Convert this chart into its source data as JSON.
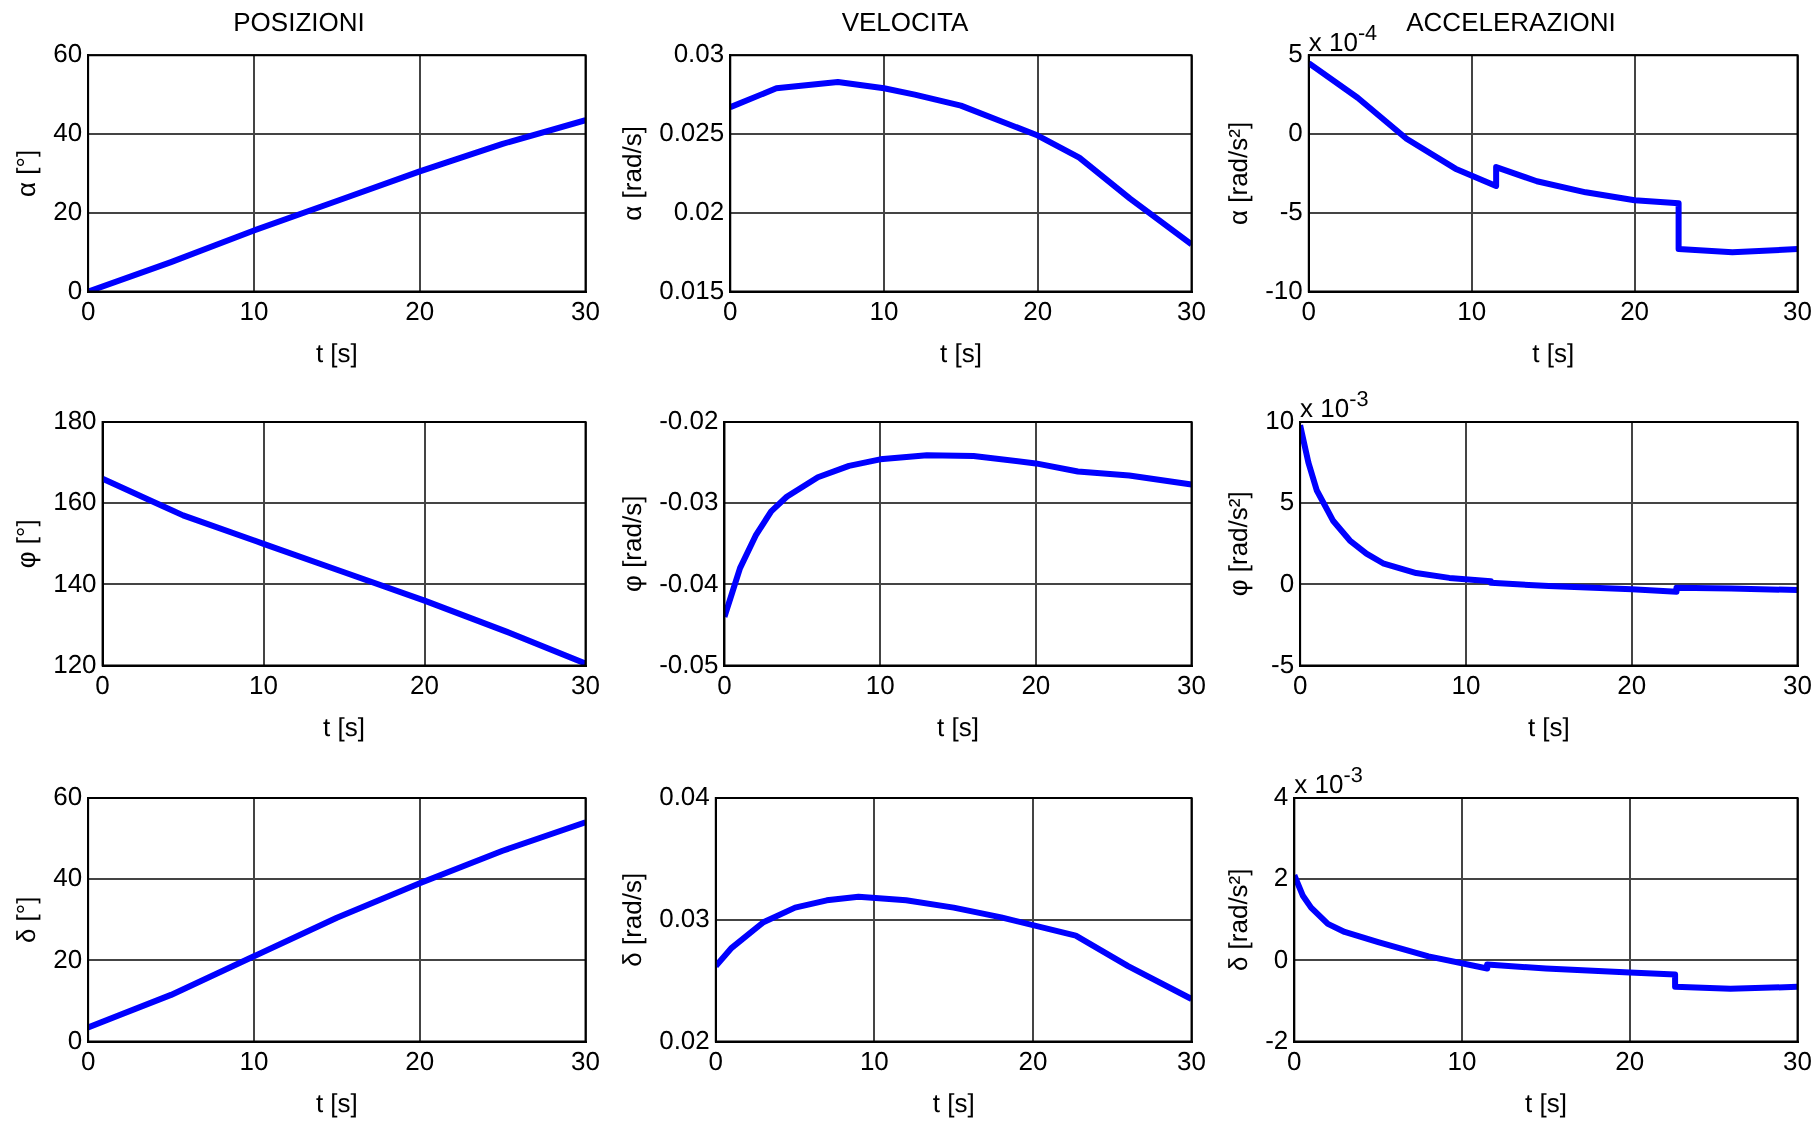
{
  "chart_data": [
    {
      "type": "line",
      "title": "POSIZIONI",
      "xlabel": "t [s]",
      "ylabel": "α [°]",
      "x": [
        0,
        5,
        10,
        15,
        20,
        25,
        30
      ],
      "series": [
        {
          "color": "#0000ff",
          "values": [
            0,
            7.5,
            15.5,
            23,
            30.5,
            37.5,
            43.5
          ]
        }
      ],
      "xlim": [
        0,
        30
      ],
      "xticks": [
        0,
        10,
        20,
        30
      ],
      "ylim": [
        0,
        60
      ],
      "yticks": [
        0,
        20,
        40,
        60
      ],
      "grid": true
    },
    {
      "type": "line",
      "title": "VELOCITA",
      "xlabel": "t [s]",
      "ylabel": "α [rad/s]",
      "x": [
        0,
        3,
        7,
        10,
        12,
        15,
        20,
        22.7,
        26,
        30
      ],
      "series": [
        {
          "color": "#0000ff",
          "values": [
            0.0267,
            0.0279,
            0.0283,
            0.0279,
            0.0275,
            0.0268,
            0.0249,
            0.0235,
            0.0209,
            0.018
          ]
        }
      ],
      "xlim": [
        0,
        30
      ],
      "xticks": [
        0,
        10,
        20,
        30
      ],
      "ylim": [
        0.015,
        0.03
      ],
      "yticks": [
        0.015,
        0.02,
        0.025,
        0.03
      ],
      "grid": true
    },
    {
      "type": "line",
      "title": "ACCELERAZIONI",
      "xlabel": "t [s]",
      "ylabel": "α [rad/s²]",
      "annotations": [
        "x 10$^{-4}$"
      ],
      "x": [
        0,
        3,
        6,
        9,
        11.5,
        11.5,
        14,
        17,
        20,
        22.7,
        22.7,
        26,
        30
      ],
      "series": [
        {
          "color": "#0000ff",
          "values": [
            4.5,
            2.3,
            -0.3,
            -2.2,
            -3.3,
            -2.1,
            -3,
            -3.7,
            -4.2,
            -4.4,
            -7.3,
            -7.5,
            -7.3
          ]
        }
      ],
      "xlim": [
        0,
        30
      ],
      "xticks": [
        0,
        10,
        20,
        30
      ],
      "ylim": [
        -10,
        5
      ],
      "yticks": [
        -10,
        -5,
        0,
        5
      ],
      "grid": true
    },
    {
      "type": "line",
      "xlabel": "t [s]",
      "ylabel": "φ [°]",
      "x": [
        0,
        5,
        10,
        15,
        20,
        25,
        30
      ],
      "series": [
        {
          "color": "#0000ff",
          "values": [
            166,
            157,
            150,
            143,
            136,
            128.5,
            120.5
          ]
        }
      ],
      "xlim": [
        0,
        30
      ],
      "xticks": [
        0,
        10,
        20,
        30
      ],
      "ylim": [
        120,
        180
      ],
      "yticks": [
        120,
        140,
        160,
        180
      ],
      "grid": true
    },
    {
      "type": "line",
      "xlabel": "t [s]",
      "ylabel": "φ [rad/s]",
      "x": [
        0,
        0.5,
        1,
        2,
        3,
        4,
        6,
        8,
        10,
        13,
        16,
        20,
        22.7,
        26,
        30
      ],
      "series": [
        {
          "color": "#0000ff",
          "values": [
            -0.044,
            -0.041,
            -0.038,
            -0.034,
            -0.031,
            -0.0292,
            -0.0268,
            -0.0254,
            -0.0246,
            -0.0241,
            -0.0242,
            -0.0251,
            -0.0261,
            -0.0266,
            -0.0277
          ]
        }
      ],
      "xlim": [
        0,
        30
      ],
      "xticks": [
        0,
        10,
        20,
        30
      ],
      "ylim": [
        -0.05,
        -0.02
      ],
      "yticks": [
        -0.05,
        -0.04,
        -0.03,
        -0.02
      ],
      "grid": true
    },
    {
      "type": "line",
      "xlabel": "t [s]",
      "ylabel": "φ [rad/s²]",
      "annotations": [
        "x 10$^{-3}$"
      ],
      "x": [
        0,
        0.5,
        1,
        2,
        3,
        4,
        5,
        7,
        9,
        11.5,
        11.5,
        15,
        20,
        22.7,
        22.7,
        26,
        30
      ],
      "series": [
        {
          "color": "#0000ff",
          "values": [
            9.8,
            7.5,
            5.8,
            3.9,
            2.7,
            1.9,
            1.3,
            0.7,
            0.4,
            0.2,
            0.1,
            -0.1,
            -0.3,
            -0.45,
            -0.2,
            -0.25,
            -0.35
          ]
        }
      ],
      "xlim": [
        0,
        30
      ],
      "xticks": [
        0,
        10,
        20,
        30
      ],
      "ylim": [
        -5,
        10
      ],
      "yticks": [
        -5,
        0,
        5,
        10
      ],
      "grid": true
    },
    {
      "type": "line",
      "xlabel": "t [s]",
      "ylabel": "δ [°]",
      "x": [
        0,
        5,
        10,
        15,
        20,
        25,
        30
      ],
      "series": [
        {
          "color": "#0000ff",
          "values": [
            3.5,
            11.5,
            21,
            30.5,
            39,
            47,
            54
          ]
        }
      ],
      "xlim": [
        0,
        30
      ],
      "xticks": [
        0,
        10,
        20,
        30
      ],
      "ylim": [
        0,
        60
      ],
      "yticks": [
        0,
        20,
        40,
        60
      ],
      "grid": true
    },
    {
      "type": "line",
      "xlabel": "t [s]",
      "ylabel": "δ [rad/s]",
      "x": [
        0,
        1,
        3,
        5,
        7,
        9,
        12,
        15,
        18,
        22.7,
        26,
        30
      ],
      "series": [
        {
          "color": "#0000ff",
          "values": [
            0.0262,
            0.0277,
            0.0298,
            0.031,
            0.0316,
            0.0319,
            0.0316,
            0.031,
            0.0302,
            0.0287,
            0.0262,
            0.0235
          ]
        }
      ],
      "xlim": [
        0,
        30
      ],
      "xticks": [
        0,
        10,
        20,
        30
      ],
      "ylim": [
        0.02,
        0.04
      ],
      "yticks": [
        0.02,
        0.03,
        0.04
      ],
      "grid": true
    },
    {
      "type": "line",
      "xlabel": "t [s]",
      "ylabel": "δ [rad/s²]",
      "annotations": [
        "x 10$^{-3}$"
      ],
      "x": [
        0,
        0.5,
        1,
        2,
        3,
        5,
        8,
        11.5,
        11.5,
        15,
        20,
        22.7,
        22.7,
        26,
        30
      ],
      "series": [
        {
          "color": "#0000ff",
          "values": [
            2.1,
            1.6,
            1.3,
            0.9,
            0.7,
            0.45,
            0.1,
            -0.2,
            -0.1,
            -0.2,
            -0.3,
            -0.35,
            -0.65,
            -0.7,
            -0.65
          ]
        }
      ],
      "xlim": [
        0,
        30
      ],
      "xticks": [
        0,
        10,
        20,
        30
      ],
      "ylim": [
        -2,
        4
      ],
      "yticks": [
        -2,
        0,
        2,
        4
      ],
      "grid": true
    }
  ]
}
